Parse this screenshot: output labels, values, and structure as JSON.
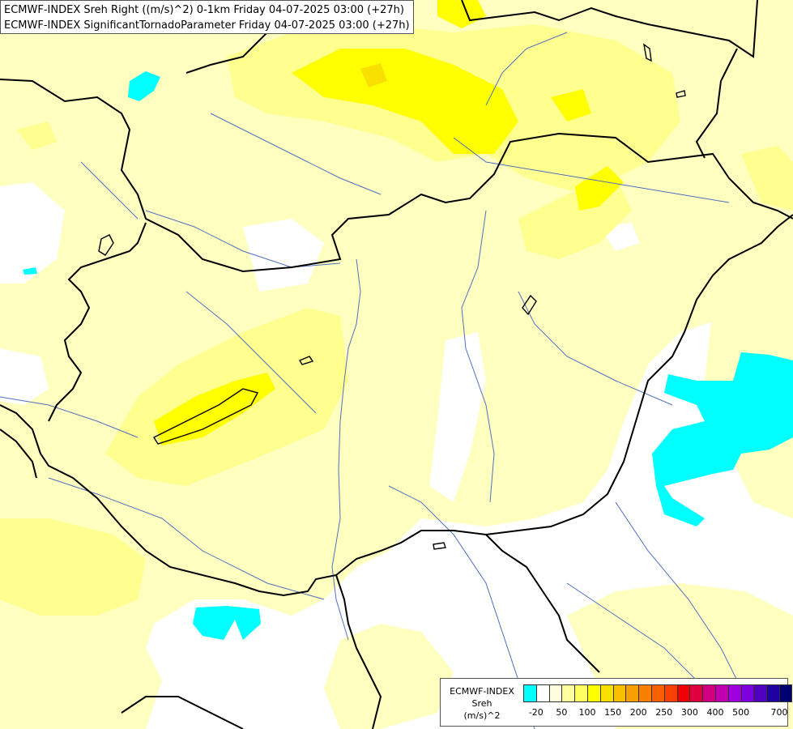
{
  "header": {
    "line1": "ECMWF-INDEX Sreh Right ((m/s)^2) 0-1km Friday 04-07-2025 03:00 (+27h)",
    "line2": "ECMWF-INDEX SignificantTornadoParameter Friday 04-07-2025 03:00 (+27h)"
  },
  "legend": {
    "title": "ECMWF-INDEX",
    "variable": "Sreh",
    "unit": "(m/s)^2",
    "colors": [
      "#00ffff",
      "#ffffff",
      "#ffffe0",
      "#ffffa0",
      "#ffff60",
      "#ffff00",
      "#f8e000",
      "#f8c000",
      "#f8a000",
      "#f88000",
      "#f86000",
      "#f84000",
      "#f00000",
      "#e00040",
      "#d00080",
      "#c000b0",
      "#a000e0",
      "#8000e0",
      "#5000c0",
      "#2000a0",
      "#000070"
    ],
    "tick_labels": [
      "-20",
      "50",
      "100",
      "150",
      "200",
      "250",
      "300",
      "400",
      "500",
      "700"
    ]
  },
  "map": {
    "colors": {
      "background": "#ffffff",
      "light_yellow": "#ffffc0",
      "pale_yellow": "#ffff90",
      "yellow": "#ffff00",
      "gold": "#f8e000",
      "cyan": "#00ffff",
      "rivers": "#5070c0",
      "borders": "#000000"
    }
  }
}
